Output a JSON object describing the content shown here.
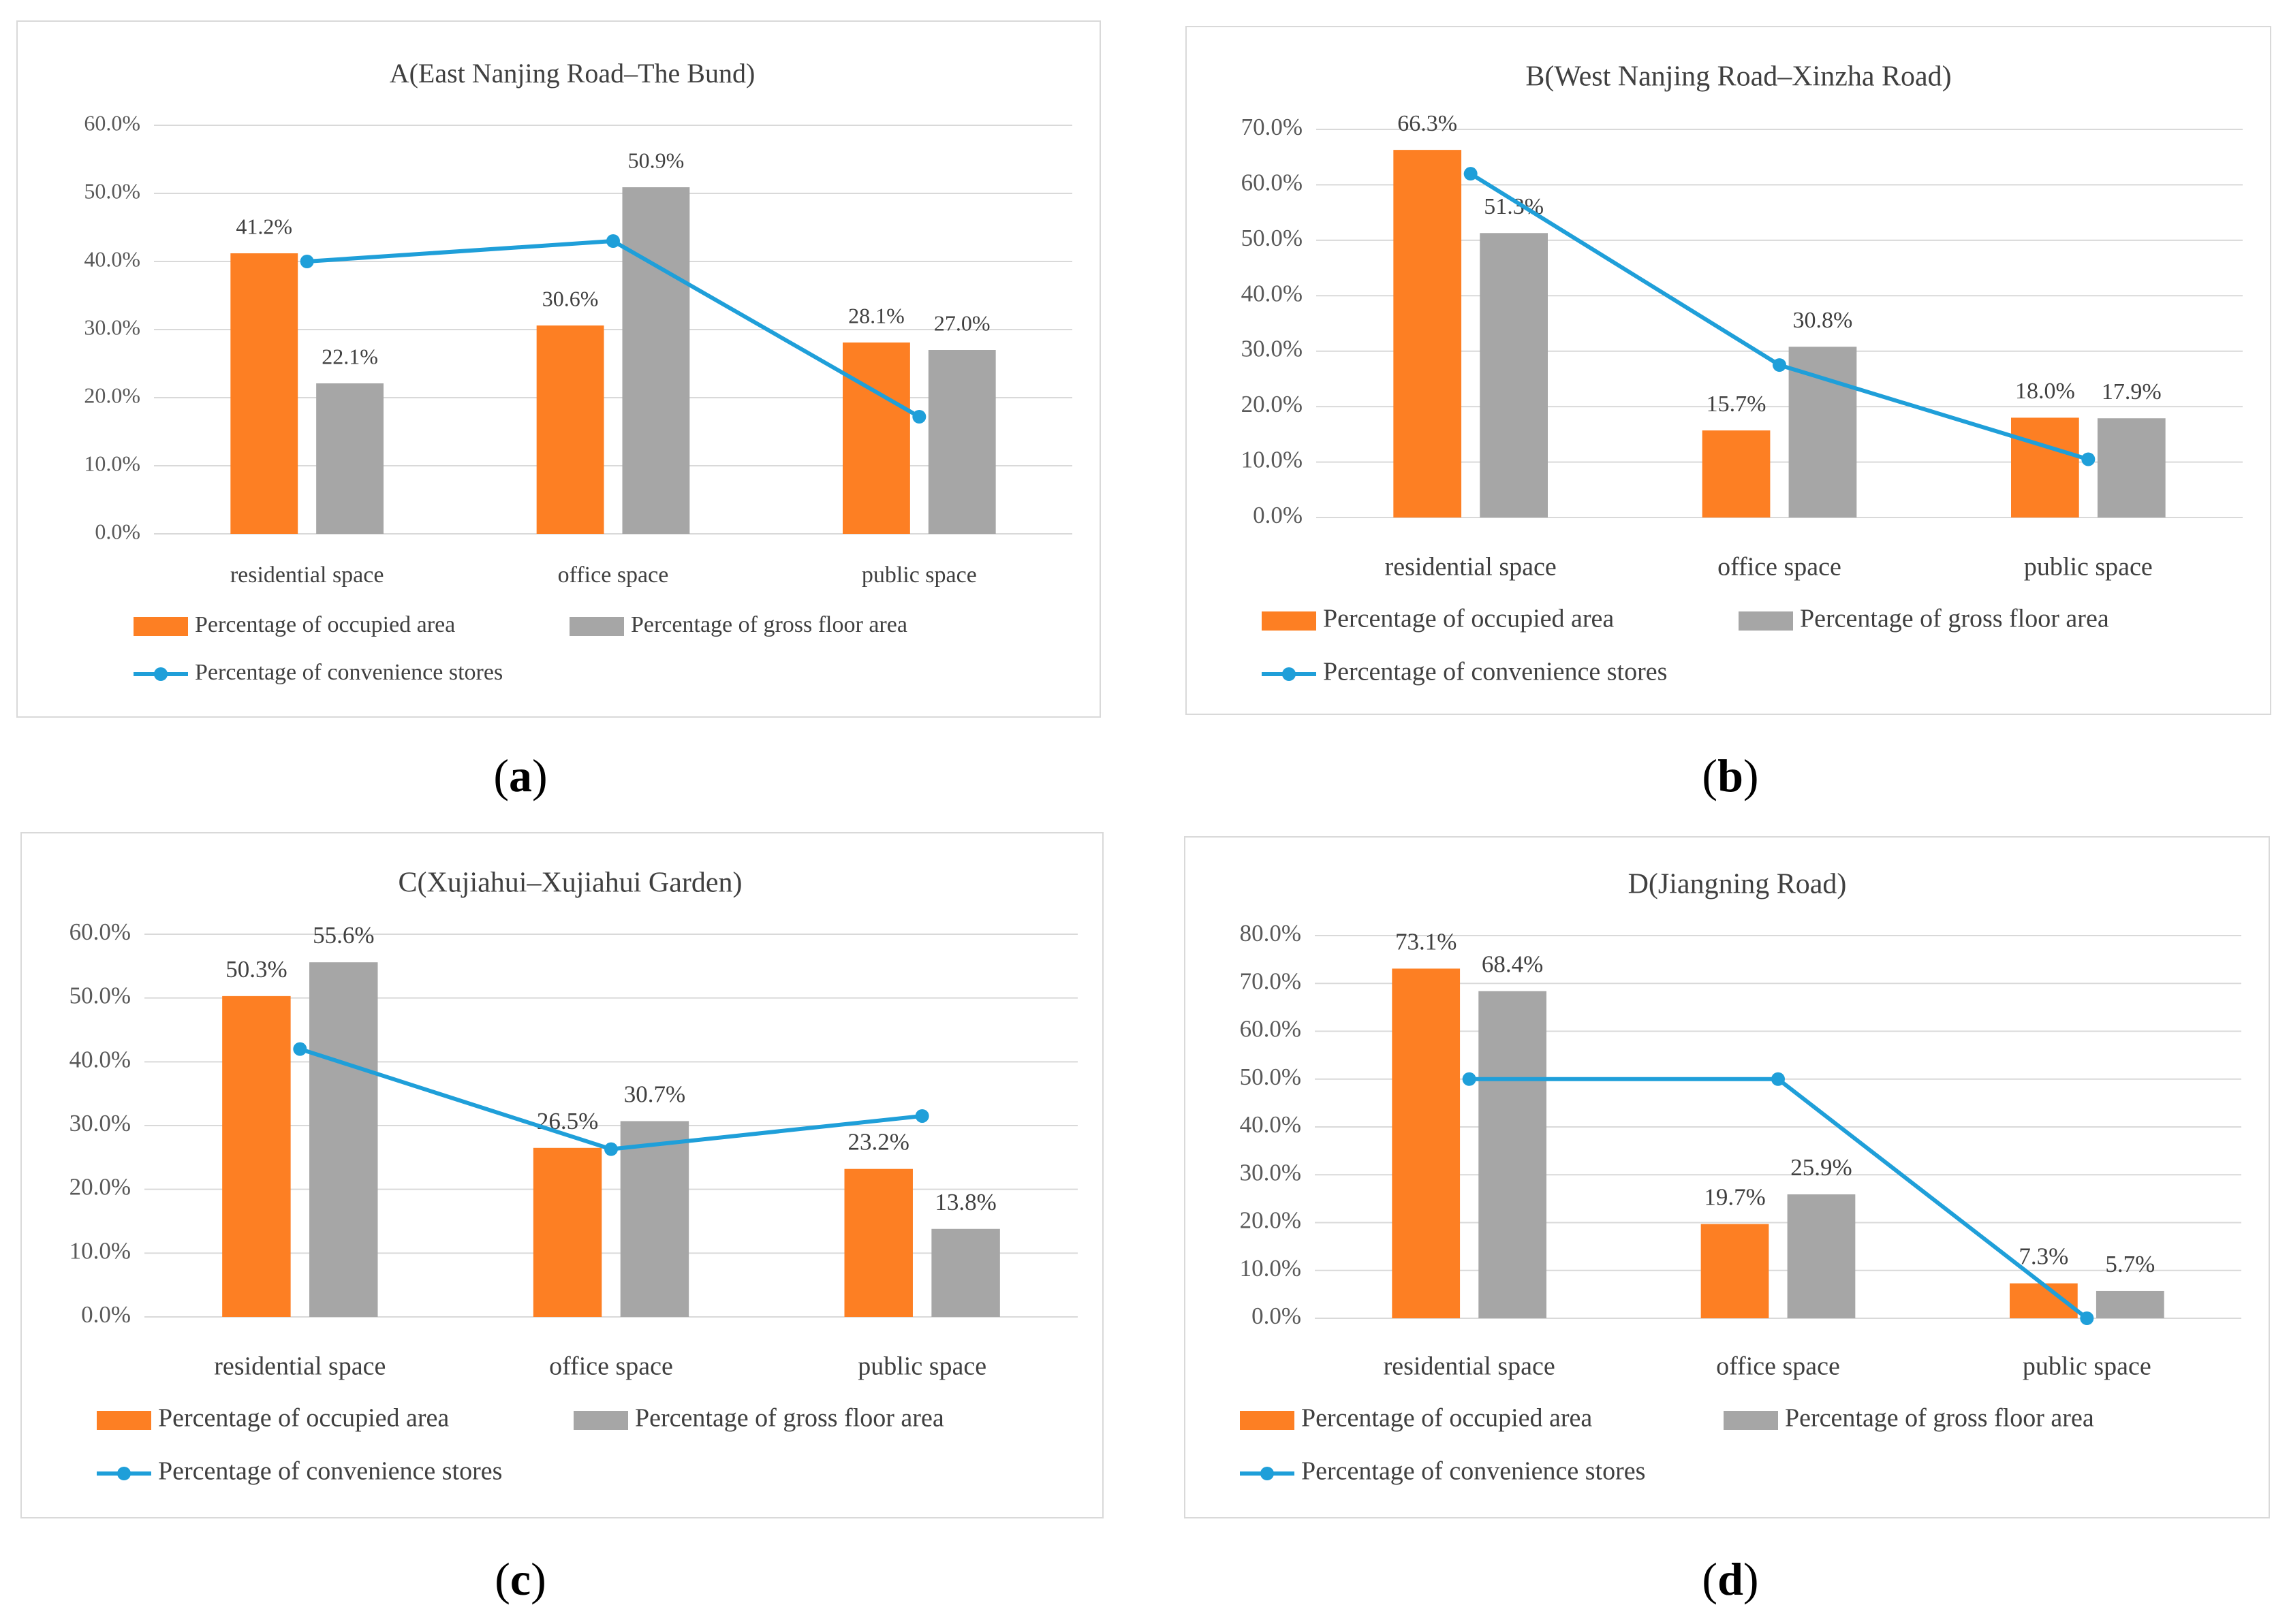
{
  "colors": {
    "occupied": "#fd7f23",
    "gross": "#a6a6a6",
    "stores": "#1f9fd9",
    "grid": "#d9d9d9",
    "axis_text": "#595959",
    "title_text": "#404040"
  },
  "legend": {
    "occupied": "Percentage of occupied area",
    "gross": "Percentage of gross floor area",
    "stores": "Percentage of convenience stores"
  },
  "subfigure_labels": [
    "a",
    "b",
    "c",
    "d"
  ],
  "chart_data": [
    {
      "id": "a",
      "type": "bar",
      "title": "A(East Nanjing Road–The Bund)",
      "categories": [
        "residential space",
        "office space",
        "public space"
      ],
      "ylim": [
        0,
        60
      ],
      "ytick_step": 10,
      "yticks": [
        "0.0%",
        "10.0%",
        "20.0%",
        "30.0%",
        "40.0%",
        "50.0%",
        "60.0%"
      ],
      "series": [
        {
          "name": "Percentage of occupied area",
          "kind": "bar",
          "values": [
            41.2,
            30.6,
            28.1
          ],
          "labels": [
            "41.2%",
            "30.6%",
            "28.1%"
          ]
        },
        {
          "name": "Percentage of gross floor area",
          "kind": "bar",
          "values": [
            22.1,
            50.9,
            27.0
          ],
          "labels": [
            "22.1%",
            "50.9%",
            "27.0%"
          ]
        },
        {
          "name": "Percentage of convenience stores",
          "kind": "line",
          "values": [
            40.0,
            43.0,
            17.2
          ]
        }
      ]
    },
    {
      "id": "b",
      "type": "bar",
      "title": "B(West Nanjing Road–Xinzha Road)",
      "categories": [
        "residential space",
        "office space",
        "public space"
      ],
      "ylim": [
        0,
        70
      ],
      "ytick_step": 10,
      "yticks": [
        "0.0%",
        "10.0%",
        "20.0%",
        "30.0%",
        "40.0%",
        "50.0%",
        "60.0%",
        "70.0%"
      ],
      "series": [
        {
          "name": "Percentage of occupied area",
          "kind": "bar",
          "values": [
            66.3,
            15.7,
            18.0
          ],
          "labels": [
            "66.3%",
            "15.7%",
            "18.0%"
          ]
        },
        {
          "name": "Percentage of gross floor area",
          "kind": "bar",
          "values": [
            51.3,
            30.8,
            17.9
          ],
          "labels": [
            "51.3%",
            "30.8%",
            "17.9%"
          ]
        },
        {
          "name": "Percentage of convenience stores",
          "kind": "line",
          "values": [
            62.0,
            27.5,
            10.5
          ]
        }
      ]
    },
    {
      "id": "c",
      "type": "bar",
      "title": "C(Xujiahui–Xujiahui Garden)",
      "categories": [
        "residential space",
        "office space",
        "public space"
      ],
      "ylim": [
        0,
        60
      ],
      "ytick_step": 10,
      "yticks": [
        "0.0%",
        "10.0%",
        "20.0%",
        "30.0%",
        "40.0%",
        "50.0%",
        "60.0%"
      ],
      "series": [
        {
          "name": "Percentage of occupied area",
          "kind": "bar",
          "values": [
            50.3,
            26.5,
            23.2
          ],
          "labels": [
            "50.3%",
            "26.5%",
            "23.2%"
          ]
        },
        {
          "name": "Percentage of gross floor area",
          "kind": "bar",
          "values": [
            55.6,
            30.7,
            13.8
          ],
          "labels": [
            "55.6%",
            "30.7%",
            "13.8%"
          ]
        },
        {
          "name": "Percentage of convenience stores",
          "kind": "line",
          "values": [
            42.0,
            26.3,
            31.5
          ]
        }
      ]
    },
    {
      "id": "d",
      "type": "bar",
      "title": "D(Jiangning Road)",
      "categories": [
        "residential space",
        "office space",
        "public space"
      ],
      "ylim": [
        0,
        80
      ],
      "ytick_step": 10,
      "yticks": [
        "0.0%",
        "10.0%",
        "20.0%",
        "30.0%",
        "40.0%",
        "50.0%",
        "60.0%",
        "70.0%",
        "80.0%"
      ],
      "series": [
        {
          "name": "Percentage of occupied area",
          "kind": "bar",
          "values": [
            73.1,
            19.7,
            7.3
          ],
          "labels": [
            "73.1%",
            "19.7%",
            "7.3%"
          ]
        },
        {
          "name": "Percentage of gross floor area",
          "kind": "bar",
          "values": [
            68.4,
            25.9,
            5.7
          ],
          "labels": [
            "68.4%",
            "25.9%",
            "5.7%"
          ]
        },
        {
          "name": "Percentage of convenience stores",
          "kind": "line",
          "values": [
            50.0,
            50.0,
            0.0
          ]
        }
      ]
    }
  ]
}
